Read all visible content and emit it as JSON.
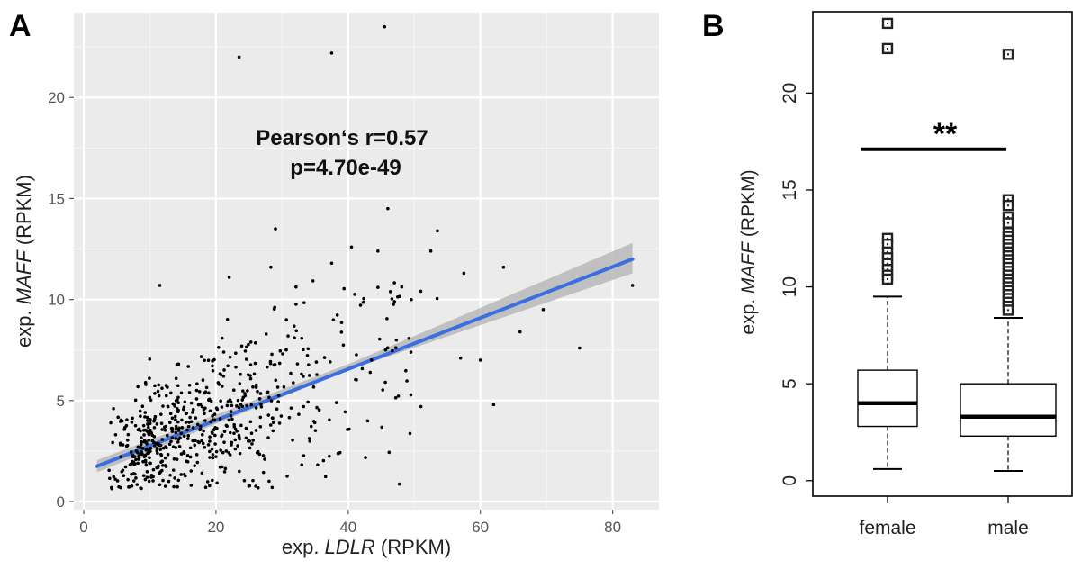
{
  "panels": [
    {
      "id": "A",
      "letter": "A"
    },
    {
      "id": "B",
      "letter": "B"
    }
  ],
  "chart_data": [
    {
      "type": "scatter",
      "panel": "A",
      "xlabel_prefix": "exp. ",
      "xlabel_gene": "LDLR",
      "xlabel_suffix": " (RPKM)",
      "ylabel_prefix": "exp. ",
      "ylabel_gene": "MAFF",
      "ylabel_suffix": " (RPKM)",
      "xlim": [
        -1.5,
        87
      ],
      "ylim": [
        -0.4,
        24.2
      ],
      "x_ticks": [
        0,
        20,
        40,
        60,
        80
      ],
      "y_ticks": [
        0,
        5,
        10,
        15,
        20
      ],
      "background_color": "#ebebeb",
      "grid": true,
      "annotation_line1": "Pearson‘s r=0.57",
      "annotation_line2": "p=4.70e-49",
      "fit_line": {
        "x": [
          2,
          83
        ],
        "y": [
          1.75,
          12.0
        ],
        "color": "#3b6fe0"
      },
      "confidence_band": {
        "x": [
          2,
          40,
          83
        ],
        "lower": [
          1.45,
          6.5,
          11.3
        ],
        "upper": [
          2.05,
          6.8,
          12.8
        ],
        "color": "#b9b9b9"
      },
      "highlighted_points": [
        {
          "x": 45.5,
          "y": 23.5
        },
        {
          "x": 37.5,
          "y": 22.2
        },
        {
          "x": 23.5,
          "y": 22.0
        },
        {
          "x": 46,
          "y": 14.5
        },
        {
          "x": 29,
          "y": 13.5
        },
        {
          "x": 53.5,
          "y": 13.4
        },
        {
          "x": 40.5,
          "y": 12.6
        },
        {
          "x": 44.5,
          "y": 12.4
        },
        {
          "x": 52.5,
          "y": 12.4
        },
        {
          "x": 37.5,
          "y": 11.8
        },
        {
          "x": 63.5,
          "y": 11.6
        },
        {
          "x": 28.3,
          "y": 11.6
        },
        {
          "x": 57.5,
          "y": 11.3
        },
        {
          "x": 22,
          "y": 11.1
        },
        {
          "x": 11.5,
          "y": 10.7
        },
        {
          "x": 83,
          "y": 10.7
        },
        {
          "x": 47,
          "y": 9.9
        },
        {
          "x": 69.5,
          "y": 9.5
        },
        {
          "x": 66,
          "y": 8.4
        },
        {
          "x": 75,
          "y": 7.6
        },
        {
          "x": 62,
          "y": 4.8
        },
        {
          "x": 60,
          "y": 7.0
        },
        {
          "x": 57,
          "y": 7.1
        },
        {
          "x": 51,
          "y": 4.7
        },
        {
          "x": 28.5,
          "y": 0.7
        },
        {
          "x": 4.5,
          "y": 4.6
        }
      ],
      "n_points": 650,
      "point_color": "#000000"
    },
    {
      "type": "box",
      "panel": "B",
      "categories": [
        "female",
        "male"
      ],
      "ylabel_prefix": "exp. ",
      "ylabel_gene": "MAFF",
      "ylabel_suffix": " (RPKM)",
      "ylim": [
        -0.8,
        24.2
      ],
      "y_ticks": [
        0,
        5,
        10,
        15,
        20
      ],
      "boxes": [
        {
          "name": "female",
          "whisker_low": 0.6,
          "q1": 2.8,
          "median": 4.0,
          "q3": 5.7,
          "whisker_high": 9.5,
          "outliers": [
            23.6,
            22.3,
            12.5,
            12.2,
            11.8,
            11.5,
            11.2,
            10.9,
            10.6,
            10.4
          ]
        },
        {
          "name": "male",
          "whisker_low": 0.5,
          "q1": 2.3,
          "median": 3.3,
          "q3": 5.0,
          "whisker_high": 8.4,
          "outliers": [
            22.0,
            14.5,
            14.2,
            13.6,
            13.3,
            12.8,
            12.6,
            12.4,
            12.2,
            12.0,
            11.8,
            11.6,
            11.4,
            11.2,
            11.0,
            10.8,
            10.6,
            10.4,
            10.2,
            10.0,
            9.8,
            9.6,
            9.4,
            9.2,
            9.0,
            8.8
          ]
        }
      ],
      "significance": {
        "label": "**",
        "y": 17.1
      }
    }
  ]
}
